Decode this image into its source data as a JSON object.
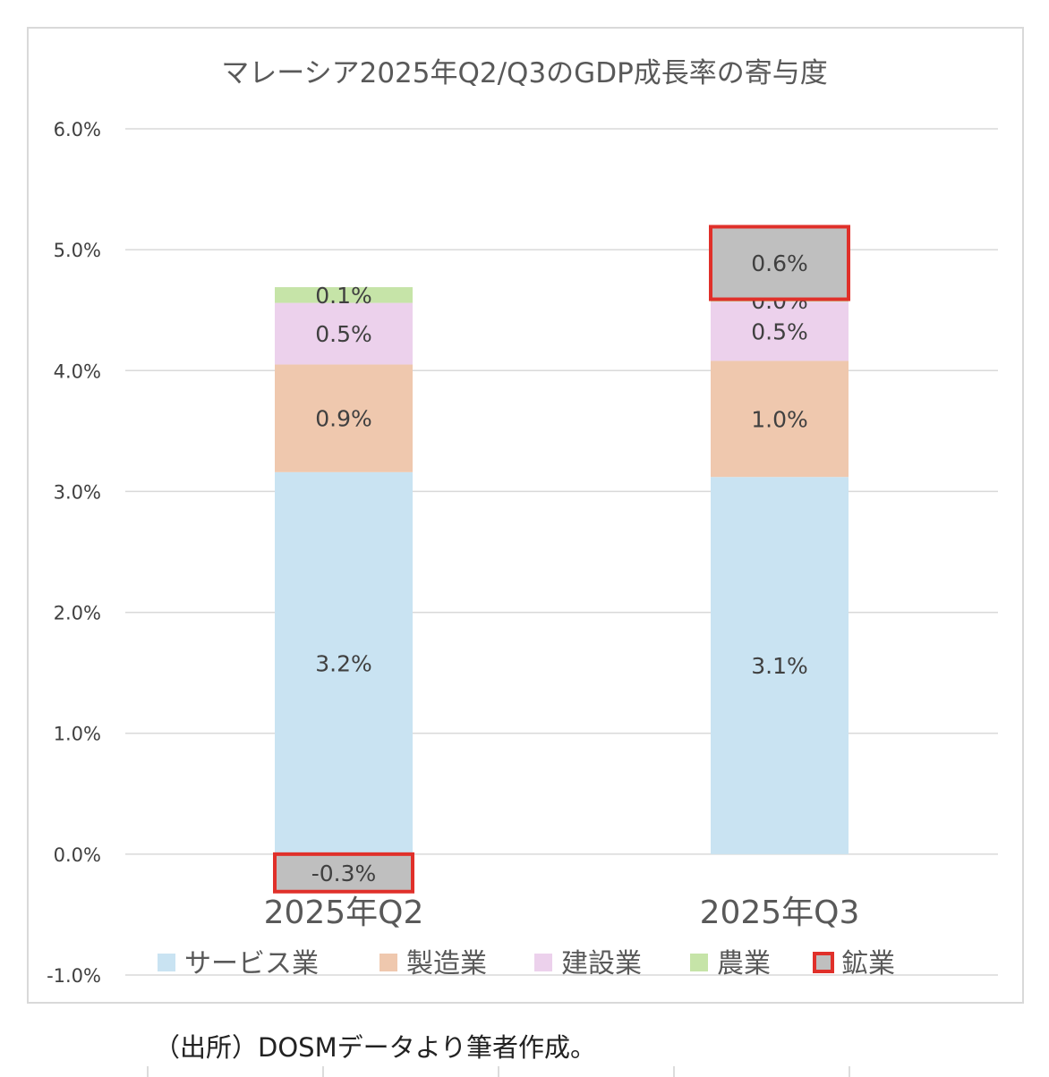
{
  "chart_data": {
    "type": "bar",
    "stacked": true,
    "title": "マレーシア2025年Q2/Q3のGDP成長率の寄与度",
    "categories": [
      "2025年Q2",
      "2025年Q3"
    ],
    "ylim": [
      -0.01,
      0.06
    ],
    "yticks": [
      "6.0%",
      "5.0%",
      "4.0%",
      "3.0%",
      "2.0%",
      "1.0%",
      "0.0%",
      "-1.0%"
    ],
    "grid": true,
    "legend_position": "bottom",
    "series": [
      {
        "name": "サービス業",
        "color": "#c9e3f2",
        "values": [
          0.0316,
          0.0312
        ],
        "labels": [
          "3.2%",
          "3.1%"
        ]
      },
      {
        "name": "製造業",
        "color": "#efc8ae",
        "values": [
          0.0089,
          0.0096
        ],
        "labels": [
          "0.9%",
          "1.0%"
        ]
      },
      {
        "name": "建設業",
        "color": "#ecd1ec",
        "values": [
          0.0051,
          0.0049
        ],
        "labels": [
          "0.5%",
          "0.5%"
        ]
      },
      {
        "name": "農業",
        "color": "#c6e4a8",
        "values": [
          0.0013,
          0.0002
        ],
        "labels": [
          "0.1%",
          "0.0%"
        ]
      },
      {
        "name": "鉱業",
        "color": "#bfbfbf",
        "values": [
          -0.0031,
          0.006
        ],
        "labels": [
          "-0.3%",
          "0.6%"
        ],
        "highlight_color": "#e0302a"
      }
    ]
  },
  "source_note": "（出所）DOSMデータより筆者作成。"
}
